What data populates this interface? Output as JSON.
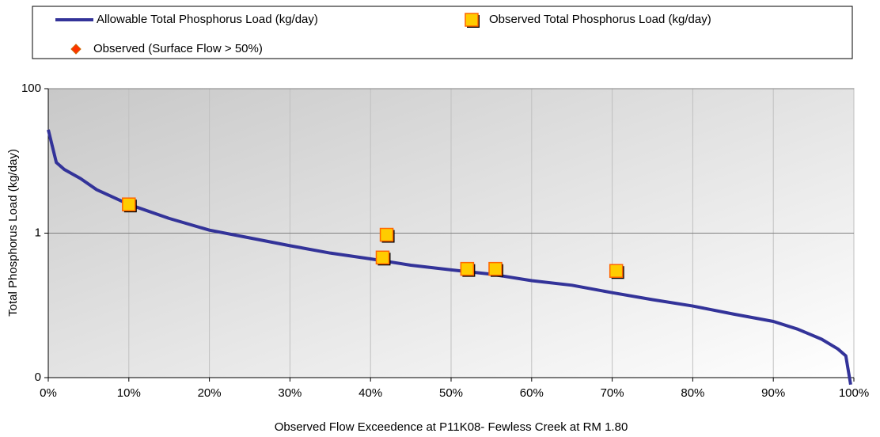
{
  "chart_data": {
    "type": "line",
    "xlabel": "Observed Flow Exceedence at P11K08- Fewless Creek at RM 1.80",
    "ylabel": "Total Phosphorus Load (kg/day)",
    "xlim": [
      0,
      100
    ],
    "xticks": [
      {
        "value": 0,
        "label": "0%"
      },
      {
        "value": 10,
        "label": "10%"
      },
      {
        "value": 20,
        "label": "20%"
      },
      {
        "value": 30,
        "label": "30%"
      },
      {
        "value": 40,
        "label": "40%"
      },
      {
        "value": 50,
        "label": "50%"
      },
      {
        "value": 60,
        "label": "60%"
      },
      {
        "value": 70,
        "label": "70%"
      },
      {
        "value": 80,
        "label": "80%"
      },
      {
        "value": 90,
        "label": "90%"
      },
      {
        "value": 100,
        "label": "100%"
      }
    ],
    "ylim": [
      0.01,
      100
    ],
    "yticks": [
      {
        "value": 0.01,
        "label": "0"
      },
      1,
      100
    ],
    "log_y": true,
    "grid": true,
    "legend": "top",
    "series": [
      {
        "name": "Allowable Total Phosphorus Load (kg/day)",
        "color": "#333399",
        "type": "line",
        "x": [
          0,
          1,
          2,
          4,
          6,
          10,
          15,
          20,
          25,
          30,
          35,
          40,
          45,
          50,
          55,
          60,
          65,
          70,
          75,
          80,
          85,
          90,
          93,
          96,
          98,
          99,
          99.6
        ],
        "values": [
          27,
          9.5,
          7.6,
          5.7,
          4,
          2.5,
          1.6,
          1.1,
          0.86,
          0.67,
          0.53,
          0.44,
          0.36,
          0.31,
          0.27,
          0.22,
          0.19,
          0.15,
          0.12,
          0.098,
          0.076,
          0.06,
          0.047,
          0.034,
          0.025,
          0.02,
          0.008
        ]
      },
      {
        "name": "Observed Total Phosphorus Load (kg/day)",
        "color": "#ffcc00",
        "type": "scatter",
        "marker": "square",
        "x": [
          10,
          42,
          41.5,
          52,
          55.5,
          70.5
        ],
        "values": [
          2.5,
          0.95,
          0.46,
          0.32,
          0.32,
          0.3
        ]
      },
      {
        "name": "Observed (Surface Flow > 50%)",
        "color": "#ff3300",
        "type": "scatter",
        "marker": "diamond",
        "x": [],
        "values": []
      }
    ]
  }
}
